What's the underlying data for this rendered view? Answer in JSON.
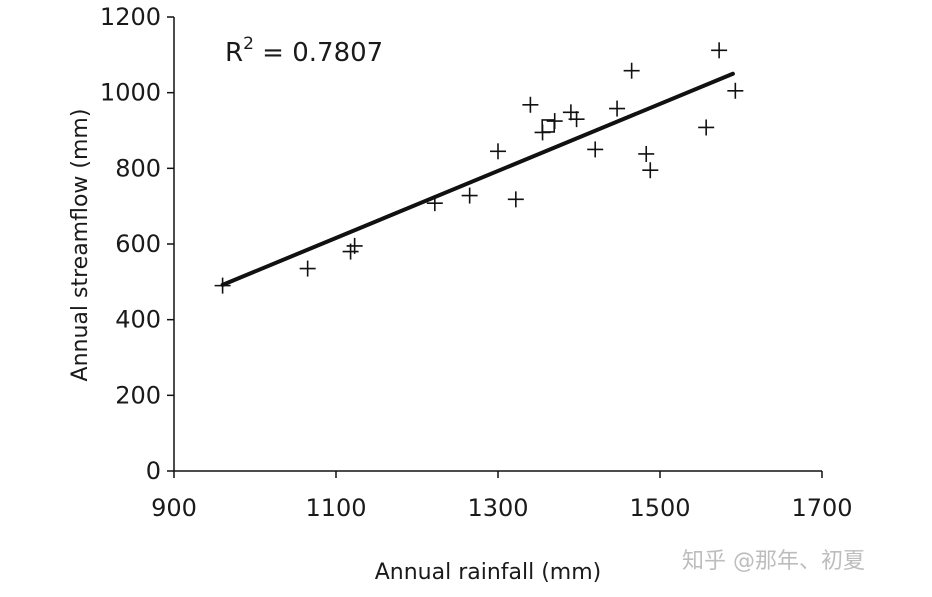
{
  "chart_data": {
    "type": "scatter",
    "xlabel": "Annual rainfall (mm)",
    "ylabel": "Annual streamflow (mm)",
    "xlim": [
      900,
      1700
    ],
    "ylim": [
      0,
      1200
    ],
    "xticks": [
      900,
      1100,
      1300,
      1500,
      1700
    ],
    "yticks": [
      0,
      200,
      400,
      600,
      800,
      1000,
      1200
    ],
    "x_tick_labels": [
      "900",
      "1100",
      "1300",
      "1500",
      "1700"
    ],
    "y_tick_labels": [
      "0",
      "200",
      "400",
      "600",
      "800",
      "1000",
      "1200"
    ],
    "grid": false,
    "annotation": {
      "r2_prefix": "R",
      "r2_superscript": "2",
      "r2_value": " = 0.7807"
    },
    "points": [
      {
        "x": 960,
        "y": 490
      },
      {
        "x": 1065,
        "y": 535
      },
      {
        "x": 1118,
        "y": 580
      },
      {
        "x": 1123,
        "y": 595
      },
      {
        "x": 1222,
        "y": 708
      },
      {
        "x": 1265,
        "y": 728
      },
      {
        "x": 1300,
        "y": 845
      },
      {
        "x": 1322,
        "y": 718
      },
      {
        "x": 1340,
        "y": 968
      },
      {
        "x": 1355,
        "y": 895
      },
      {
        "x": 1370,
        "y": 925
      },
      {
        "x": 1390,
        "y": 948
      },
      {
        "x": 1397,
        "y": 930
      },
      {
        "x": 1420,
        "y": 850
      },
      {
        "x": 1447,
        "y": 958
      },
      {
        "x": 1465,
        "y": 1058
      },
      {
        "x": 1483,
        "y": 838
      },
      {
        "x": 1488,
        "y": 795
      },
      {
        "x": 1557,
        "y": 908
      },
      {
        "x": 1573,
        "y": 1112
      },
      {
        "x": 1593,
        "y": 1005
      }
    ],
    "marker_square": {
      "x": 1362,
      "y": 912
    },
    "trendline": {
      "x": [
        960,
        1590
      ],
      "y": [
        492,
        1050
      ]
    },
    "colors": {
      "ink": "#111111",
      "watermark": "#bdbdbd"
    }
  },
  "watermark": "知乎 @那年、初夏"
}
